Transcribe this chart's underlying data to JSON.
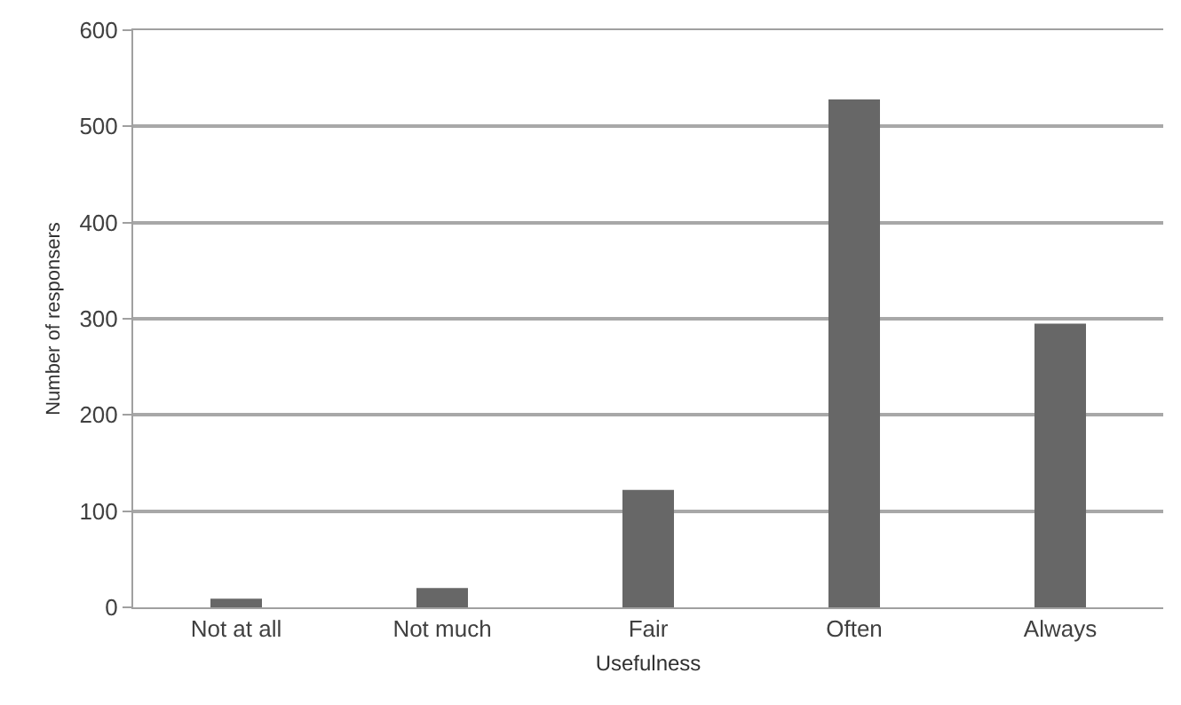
{
  "chart_data": {
    "type": "bar",
    "xlabel": "Usefulness",
    "ylabel": "Number of responsers",
    "categories": [
      "Not at all",
      "Not much",
      "Fair",
      "Often",
      "Always"
    ],
    "values": [
      9,
      20,
      122,
      528,
      295
    ],
    "color": "#676767",
    "ylim": [
      0,
      600
    ],
    "yticks": [
      0,
      100,
      200,
      300,
      400,
      500,
      600
    ],
    "grid": "y"
  }
}
